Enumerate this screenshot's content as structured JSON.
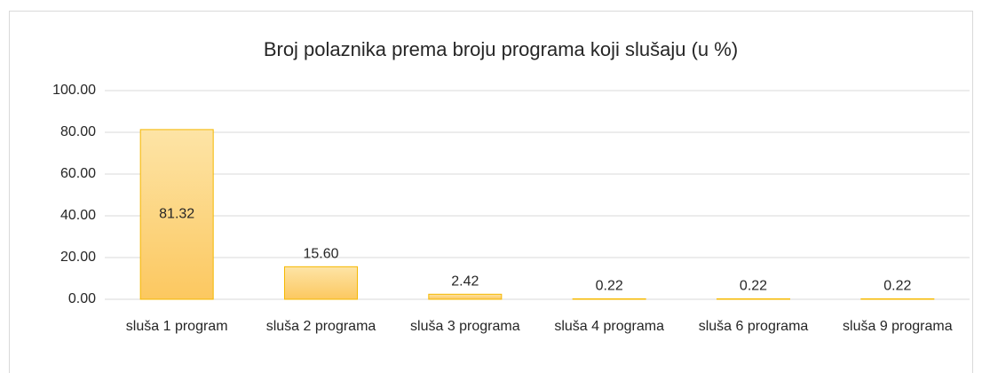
{
  "chart_data": {
    "type": "bar",
    "title": "Broj polaznika prema broju programa koji slušaju (u %)",
    "categories": [
      "sluša 1 program",
      "sluša 2 programa",
      "sluša 3 programa",
      "sluša 4 programa",
      "sluša 6 programa",
      "sluša 9 programa"
    ],
    "values": [
      81.32,
      15.6,
      2.42,
      0.22,
      0.22,
      0.22
    ],
    "value_labels": [
      "81.32",
      "15.60",
      "2.42",
      "0.22",
      "0.22",
      "0.22"
    ],
    "color": "#fcd27a",
    "ylim": [
      0,
      100
    ],
    "yticks": [
      {
        "value": 0,
        "label": "0.00"
      },
      {
        "value": 20,
        "label": "20.00"
      },
      {
        "value": 40,
        "label": "40.00"
      },
      {
        "value": 60,
        "label": "60.00"
      },
      {
        "value": 80,
        "label": "80.00"
      },
      {
        "value": 100,
        "label": "100.00"
      }
    ],
    "grid": true
  }
}
